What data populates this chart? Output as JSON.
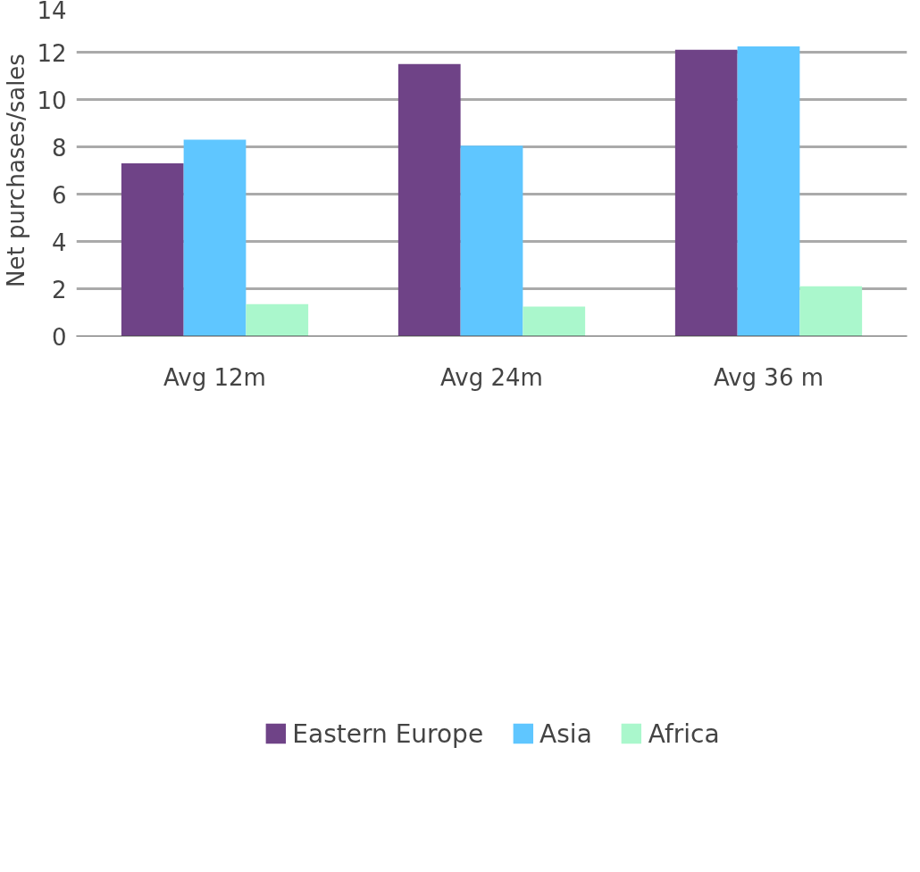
{
  "chart_data": {
    "type": "bar",
    "ylabel": "Net purchases/sales",
    "categories": [
      "Avg 12m",
      "Avg 24m",
      "Avg 36 m"
    ],
    "series": [
      {
        "name": "Eastern Europe",
        "color": "#6f4387",
        "values": [
          7.3,
          11.5,
          12.1
        ]
      },
      {
        "name": "Asia",
        "color": "#5fc6ff",
        "values": [
          8.3,
          8.05,
          12.25
        ]
      },
      {
        "name": "Africa",
        "color": "#aaf7cc",
        "values": [
          1.35,
          1.25,
          2.1
        ]
      }
    ],
    "ylim": [
      0,
      14
    ],
    "yticks": [
      0,
      2,
      4,
      6,
      8,
      10,
      12,
      14
    ],
    "grid": "y",
    "legend": "bottom"
  }
}
